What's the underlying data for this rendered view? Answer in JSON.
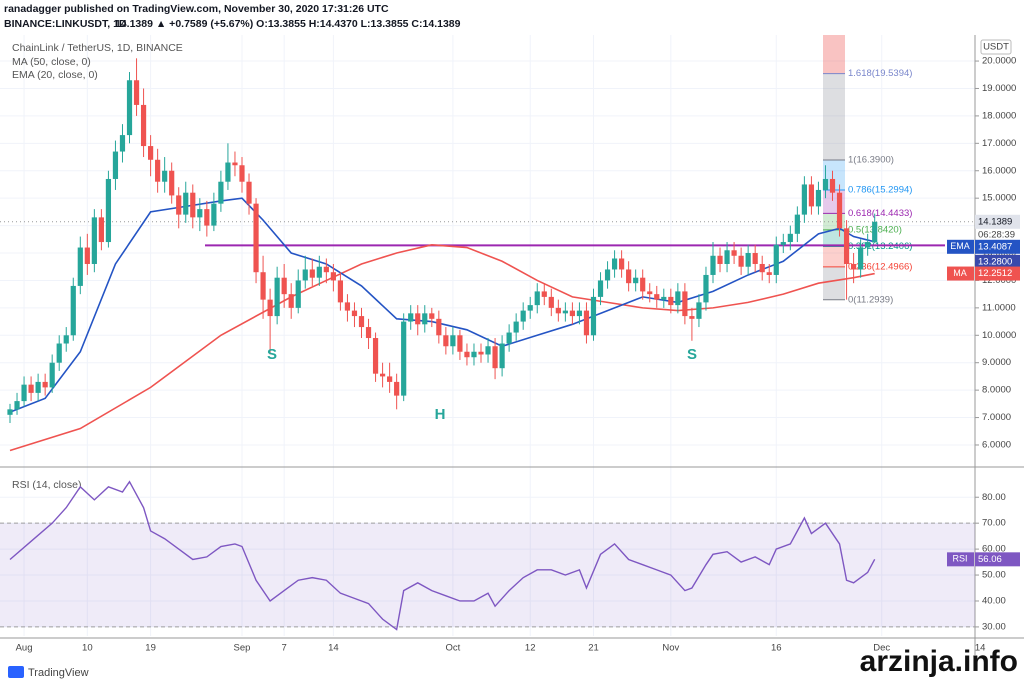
{
  "header": {
    "line1": "ranadagger published on TradingView.com, November 30, 2020 17:31:26 UTC",
    "symbol": "BINANCE:LINKUSDT, 1D",
    "quote": "14.1389 ▲ +0.7589 (+5.67%) O:13.3855 H:14.4370 L:13.3855 C:14.1389"
  },
  "footer": {
    "brand": "TradingView",
    "watermark": "arzinja.info"
  },
  "chart_data": [
    {
      "type": "candlestick",
      "title": "ChainLink / TetherUS, 1D, BINANCE",
      "unit": "USDT",
      "up_color": "#26a69a",
      "down_color": "#ef5350",
      "candles": [
        [
          7.1,
          7.5,
          6.8,
          7.3
        ],
        [
          7.3,
          7.9,
          7.1,
          7.6
        ],
        [
          7.6,
          8.5,
          7.4,
          8.2
        ],
        [
          8.2,
          8.5,
          7.6,
          7.9
        ],
        [
          7.9,
          8.6,
          7.6,
          8.3
        ],
        [
          8.3,
          8.6,
          7.8,
          8.1
        ],
        [
          8.1,
          9.3,
          7.9,
          9.0
        ],
        [
          9.0,
          10.0,
          8.7,
          9.7
        ],
        [
          9.7,
          10.3,
          9.4,
          10.0
        ],
        [
          10.0,
          12.1,
          9.8,
          11.8
        ],
        [
          11.8,
          13.6,
          11.5,
          13.2
        ],
        [
          13.2,
          13.7,
          12.2,
          12.6
        ],
        [
          12.6,
          14.6,
          12.3,
          14.3
        ],
        [
          14.3,
          14.6,
          13.1,
          13.4
        ],
        [
          13.4,
          16.0,
          13.2,
          15.7
        ],
        [
          15.7,
          17.1,
          15.3,
          16.7
        ],
        [
          16.7,
          17.7,
          16.3,
          17.3
        ],
        [
          17.3,
          19.6,
          17.0,
          19.3
        ],
        [
          19.3,
          20.1,
          18.0,
          18.4
        ],
        [
          18.4,
          19.0,
          16.5,
          16.9
        ],
        [
          16.9,
          17.3,
          15.8,
          16.4
        ],
        [
          16.4,
          16.8,
          15.2,
          15.6
        ],
        [
          15.6,
          16.5,
          15.2,
          16.0
        ],
        [
          16.0,
          16.3,
          14.8,
          15.1
        ],
        [
          15.1,
          15.4,
          13.9,
          14.4
        ],
        [
          14.4,
          15.6,
          14.1,
          15.2
        ],
        [
          15.2,
          15.5,
          13.9,
          14.3
        ],
        [
          14.3,
          15.0,
          13.8,
          14.6
        ],
        [
          14.6,
          14.9,
          13.6,
          14.0
        ],
        [
          14.0,
          15.2,
          13.8,
          14.8
        ],
        [
          14.8,
          16.0,
          14.5,
          15.6
        ],
        [
          15.6,
          17.0,
          15.3,
          16.3
        ],
        [
          16.3,
          16.7,
          15.8,
          16.2
        ],
        [
          16.2,
          16.5,
          15.2,
          15.6
        ],
        [
          15.6,
          15.9,
          14.4,
          14.8
        ],
        [
          14.8,
          15.0,
          11.9,
          12.3
        ],
        [
          12.3,
          12.9,
          10.6,
          11.3
        ],
        [
          11.3,
          11.7,
          9.3,
          10.7
        ],
        [
          10.7,
          12.5,
          10.4,
          12.1
        ],
        [
          12.1,
          12.6,
          11.0,
          11.5
        ],
        [
          11.5,
          11.9,
          10.6,
          11.0
        ],
        [
          11.0,
          12.4,
          10.8,
          12.0
        ],
        [
          12.0,
          12.9,
          11.7,
          12.4
        ],
        [
          12.4,
          12.8,
          11.8,
          12.1
        ],
        [
          12.1,
          12.9,
          11.8,
          12.5
        ],
        [
          12.5,
          12.8,
          11.9,
          12.3
        ],
        [
          12.3,
          12.6,
          11.6,
          12.0
        ],
        [
          12.0,
          12.3,
          10.9,
          11.2
        ],
        [
          11.2,
          11.5,
          10.5,
          10.9
        ],
        [
          10.9,
          11.2,
          10.3,
          10.7
        ],
        [
          10.7,
          11.0,
          9.9,
          10.3
        ],
        [
          10.3,
          10.6,
          9.5,
          9.9
        ],
        [
          9.9,
          10.1,
          8.3,
          8.6
        ],
        [
          8.6,
          9.0,
          8.1,
          8.5
        ],
        [
          8.5,
          9.0,
          7.9,
          8.3
        ],
        [
          8.3,
          8.6,
          7.3,
          7.8
        ],
        [
          7.8,
          10.8,
          7.6,
          10.5
        ],
        [
          10.5,
          11.1,
          10.2,
          10.8
        ],
        [
          10.8,
          11.1,
          10.0,
          10.4
        ],
        [
          10.4,
          11.1,
          10.1,
          10.8
        ],
        [
          10.8,
          11.0,
          10.3,
          10.6
        ],
        [
          10.6,
          10.9,
          9.7,
          10.0
        ],
        [
          10.0,
          10.3,
          9.3,
          9.6
        ],
        [
          9.6,
          10.3,
          9.3,
          10.0
        ],
        [
          10.0,
          10.2,
          9.1,
          9.4
        ],
        [
          9.4,
          9.7,
          8.9,
          9.2
        ],
        [
          9.2,
          9.7,
          8.9,
          9.4
        ],
        [
          9.4,
          9.7,
          9.0,
          9.3
        ],
        [
          9.3,
          9.9,
          9.0,
          9.6
        ],
        [
          9.6,
          9.9,
          8.4,
          8.8
        ],
        [
          8.8,
          10.0,
          8.5,
          9.7
        ],
        [
          9.7,
          10.4,
          9.4,
          10.1
        ],
        [
          10.1,
          10.8,
          9.8,
          10.5
        ],
        [
          10.5,
          11.2,
          10.2,
          10.9
        ],
        [
          10.9,
          11.4,
          10.6,
          11.1
        ],
        [
          11.1,
          11.9,
          10.8,
          11.6
        ],
        [
          11.6,
          11.9,
          11.1,
          11.4
        ],
        [
          11.4,
          11.7,
          10.7,
          11.0
        ],
        [
          11.0,
          11.3,
          10.5,
          10.8
        ],
        [
          10.8,
          11.2,
          10.5,
          10.9
        ],
        [
          10.9,
          11.2,
          10.4,
          10.7
        ],
        [
          10.7,
          11.2,
          10.4,
          10.9
        ],
        [
          10.9,
          11.2,
          9.7,
          10.0
        ],
        [
          10.0,
          11.7,
          9.8,
          11.4
        ],
        [
          11.4,
          12.3,
          11.1,
          12.0
        ],
        [
          12.0,
          12.7,
          11.7,
          12.4
        ],
        [
          12.4,
          13.1,
          12.1,
          12.8
        ],
        [
          12.8,
          13.1,
          12.1,
          12.4
        ],
        [
          12.4,
          12.7,
          11.6,
          11.9
        ],
        [
          11.9,
          12.4,
          11.6,
          12.1
        ],
        [
          12.1,
          12.4,
          11.3,
          11.6
        ],
        [
          11.6,
          11.9,
          11.2,
          11.5
        ],
        [
          11.5,
          11.8,
          11.0,
          11.3
        ],
        [
          11.3,
          11.7,
          11.0,
          11.4
        ],
        [
          11.4,
          11.7,
          10.8,
          11.1
        ],
        [
          11.1,
          11.9,
          10.8,
          11.6
        ],
        [
          11.6,
          11.9,
          10.4,
          10.7
        ],
        [
          10.7,
          11.0,
          9.8,
          10.6
        ],
        [
          10.6,
          11.5,
          10.3,
          11.2
        ],
        [
          11.2,
          12.5,
          10.9,
          12.2
        ],
        [
          12.2,
          13.4,
          11.9,
          12.9
        ],
        [
          12.9,
          13.2,
          12.3,
          12.6
        ],
        [
          12.6,
          13.4,
          12.3,
          13.1
        ],
        [
          13.1,
          13.4,
          12.6,
          12.9
        ],
        [
          12.9,
          13.2,
          12.2,
          12.5
        ],
        [
          12.5,
          13.3,
          12.2,
          13.0
        ],
        [
          13.0,
          13.3,
          12.3,
          12.6
        ],
        [
          12.6,
          12.9,
          12.0,
          12.3
        ],
        [
          12.3,
          12.6,
          11.9,
          12.2
        ],
        [
          12.2,
          13.6,
          11.9,
          13.3
        ],
        [
          13.3,
          13.7,
          13.0,
          13.4
        ],
        [
          13.4,
          14.0,
          13.1,
          13.7
        ],
        [
          13.7,
          14.7,
          13.4,
          14.4
        ],
        [
          14.4,
          15.8,
          14.1,
          15.5
        ],
        [
          15.5,
          15.8,
          14.4,
          14.7
        ],
        [
          14.7,
          15.6,
          14.4,
          15.3
        ],
        [
          15.3,
          16.2,
          15.0,
          15.7
        ],
        [
          15.7,
          16.0,
          14.9,
          15.2
        ],
        [
          15.2,
          15.5,
          13.6,
          13.9
        ],
        [
          13.9,
          14.2,
          11.3,
          12.6
        ],
        [
          12.6,
          13.0,
          11.9,
          12.4
        ],
        [
          12.4,
          13.5,
          12.1,
          13.2
        ],
        [
          13.2,
          13.7,
          12.9,
          13.4
        ],
        [
          13.3855,
          14.437,
          13.3855,
          14.1389
        ]
      ],
      "series": [
        {
          "name": "MA (50, close, 0)",
          "tag": "MA",
          "color": "#ef5350",
          "x": [
            0,
            10,
            20,
            30,
            40,
            45,
            50,
            55,
            60,
            65,
            70,
            75,
            80,
            85,
            90,
            95,
            100,
            105,
            110,
            115,
            120,
            123
          ],
          "values": [
            5.8,
            6.6,
            8.1,
            10.0,
            11.4,
            12.0,
            12.6,
            13.0,
            13.3,
            13.2,
            12.7,
            12.0,
            11.4,
            11.2,
            11.0,
            10.9,
            11.0,
            11.2,
            11.5,
            11.9,
            12.1,
            12.2512
          ]
        },
        {
          "name": "EMA (20, close, 0)",
          "tag": "EMA",
          "color": "#2454c4",
          "x": [
            0,
            5,
            10,
            15,
            20,
            25,
            30,
            33,
            36,
            40,
            45,
            50,
            55,
            60,
            65,
            70,
            75,
            80,
            85,
            90,
            95,
            100,
            105,
            110,
            115,
            118,
            120,
            123
          ],
          "values": [
            7.2,
            7.7,
            9.4,
            12.6,
            14.5,
            14.7,
            14.9,
            15.0,
            14.2,
            13.0,
            12.6,
            11.8,
            10.6,
            10.5,
            10.2,
            9.6,
            10.0,
            10.4,
            10.9,
            11.4,
            11.2,
            11.6,
            12.2,
            12.7,
            13.7,
            13.9,
            13.6,
            13.4087
          ]
        }
      ],
      "countdown": "06:28:39",
      "hline": {
        "value": 13.28,
        "label": "13.2800",
        "color": "#9c27b0"
      },
      "fib": [
        {
          "value": 19.5394,
          "label": "1.618(19.5394)",
          "color": "#7986cb"
        },
        {
          "value": 16.39,
          "label": "1(16.3900)",
          "color": "#787b86"
        },
        {
          "value": 15.2994,
          "label": "0.786(15.2994)",
          "color": "#2196f3"
        },
        {
          "value": 14.4433,
          "label": "0.618(14.4433)",
          "color": "#9c27b0"
        },
        {
          "value": 13.842,
          "label": "0.5(13.8420)",
          "color": "#4caf50"
        },
        {
          "value": 13.2406,
          "label": "0.382(13.2406)",
          "color": "#009688"
        },
        {
          "value": 12.4966,
          "label": "0.236(12.4966)",
          "color": "#f44336"
        },
        {
          "value": 11.2939,
          "label": "0(11.2939)",
          "color": "#787b86"
        }
      ],
      "annotations": [
        "S",
        "H",
        "S"
      ],
      "xticks": [
        {
          "value": 2,
          "label": "Aug"
        },
        {
          "value": 11,
          "label": "10"
        },
        {
          "value": 20,
          "label": "19"
        },
        {
          "value": 33,
          "label": "Sep"
        },
        {
          "value": 39,
          "label": "7"
        },
        {
          "value": 46,
          "label": "14"
        },
        {
          "value": 63,
          "label": "Oct"
        },
        {
          "value": 74,
          "label": "12"
        },
        {
          "value": 83,
          "label": "21"
        },
        {
          "value": 94,
          "label": "Nov"
        },
        {
          "value": 109,
          "label": "16"
        },
        {
          "value": 124,
          "label": "Dec"
        },
        {
          "value": 138,
          "label": "14"
        }
      ],
      "ylim": [
        5.27,
        20.95
      ],
      "yticks": [
        {
          "value": 6,
          "label": "6.0000"
        },
        {
          "value": 7,
          "label": "7.0000"
        },
        {
          "value": 8,
          "label": "8.0000"
        },
        {
          "value": 9,
          "label": "9.0000"
        },
        {
          "value": 10,
          "label": "10.0000"
        },
        {
          "value": 11,
          "label": "11.0000"
        },
        {
          "value": 12,
          "label": "12.0000"
        },
        {
          "value": 13,
          "label": "13.0000"
        },
        {
          "value": 14,
          "label": "14.0000"
        },
        {
          "value": 15,
          "label": "15.0000"
        },
        {
          "value": 16,
          "label": "16.0000"
        },
        {
          "value": 17,
          "label": "17.0000"
        },
        {
          "value": 18,
          "label": "18.0000"
        },
        {
          "value": 19,
          "label": "19.0000"
        },
        {
          "value": 20,
          "label": "20.0000"
        }
      ],
      "grid": true
    },
    {
      "type": "line",
      "title": "RSI (14, close)",
      "tag": "RSI",
      "color": "#7e57c2",
      "band": [
        30,
        70
      ],
      "x": [
        0,
        3,
        6,
        8,
        10,
        12,
        14,
        16,
        17,
        19,
        20,
        22,
        24,
        26,
        28,
        30,
        32,
        33,
        35,
        37,
        39,
        41,
        43,
        45,
        47,
        49,
        51,
        53,
        55,
        56,
        58,
        60,
        62,
        64,
        66,
        68,
        69,
        71,
        73,
        75,
        77,
        79,
        81,
        82,
        84,
        86,
        88,
        90,
        92,
        94,
        96,
        97,
        99,
        100,
        102,
        104,
        106,
        108,
        109,
        111,
        113,
        114,
        116,
        118,
        119,
        120,
        122,
        123
      ],
      "values": [
        56,
        63,
        70,
        76,
        84,
        79,
        84,
        82,
        86,
        76,
        67,
        64,
        60,
        56,
        57,
        61,
        62,
        61,
        48,
        40,
        44,
        48,
        49,
        48,
        43,
        41,
        39,
        33,
        29,
        44,
        47,
        44,
        42,
        40,
        40,
        43,
        38,
        44,
        49,
        52,
        52,
        50,
        52,
        45,
        58,
        62,
        56,
        54,
        52,
        50,
        44,
        45,
        54,
        58,
        59,
        55,
        57,
        54,
        60,
        62,
        72,
        66,
        70,
        62,
        48,
        47,
        51,
        56.06
      ],
      "ylim": [
        26.5,
        90.5
      ],
      "yticks": [
        {
          "value": 30,
          "label": "30.00"
        },
        {
          "value": 40,
          "label": "40.00"
        },
        {
          "value": 50,
          "label": "50.00"
        },
        {
          "value": 60,
          "label": "60.00"
        },
        {
          "value": 70,
          "label": "70.00"
        },
        {
          "value": 80,
          "label": "80.00"
        }
      ],
      "grid": true
    }
  ]
}
